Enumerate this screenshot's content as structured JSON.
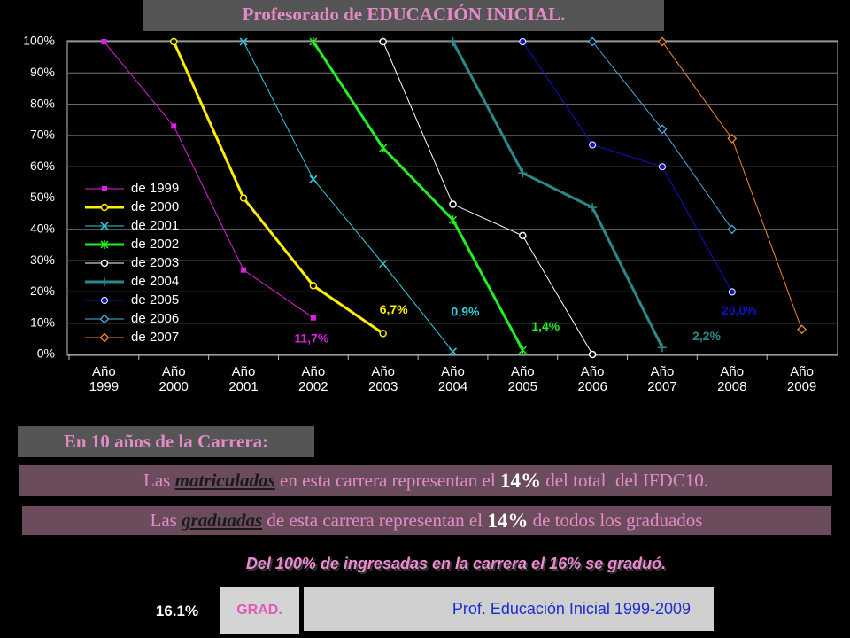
{
  "chart_data": {
    "type": "line",
    "title": "Profesorado de EDUCACIÓN INICIAL.",
    "categories": [
      "Año 1999",
      "Año 2000",
      "Año 2001",
      "Año 2002",
      "Año 2003",
      "Año 2004",
      "Año 2005",
      "Año 2006",
      "Año 2007",
      "Año 2008",
      "Año 2009"
    ],
    "ylim": [
      0,
      100
    ],
    "yticks": [
      {
        "value": 0,
        "label": "0%"
      },
      {
        "value": 10,
        "label": "10%"
      },
      {
        "value": 20,
        "label": "20%"
      },
      {
        "value": 30,
        "label": "30%"
      },
      {
        "value": 40,
        "label": "40%"
      },
      {
        "value": 50,
        "label": "50%"
      },
      {
        "value": 60,
        "label": "60%"
      },
      {
        "value": 70,
        "label": "70%"
      },
      {
        "value": 80,
        "label": "80%"
      },
      {
        "value": 90,
        "label": "90%"
      },
      {
        "value": 100,
        "label": "100%"
      }
    ],
    "grid": true,
    "legend": "left",
    "series": [
      {
        "name": "de 1999",
        "color": "#e020e0",
        "marker": "square",
        "line_width": 1,
        "values": [
          100,
          73,
          27,
          11.7,
          null,
          null,
          null,
          null,
          null,
          null,
          null
        ],
        "value_labels": [
          null,
          null,
          null,
          "11,7%",
          null,
          null,
          null,
          null,
          null,
          null,
          null
        ]
      },
      {
        "name": "de 2000",
        "color": "#ffee00",
        "marker": "circle",
        "line_width": 3,
        "values": [
          null,
          100,
          50,
          22,
          6.7,
          null,
          null,
          null,
          null,
          null,
          null
        ],
        "value_labels": [
          null,
          null,
          null,
          null,
          "6,7%",
          null,
          null,
          null,
          null,
          null,
          null
        ]
      },
      {
        "name": "de 2001",
        "color": "#33ccdd",
        "marker": "x",
        "line_width": 1,
        "values": [
          null,
          null,
          100,
          56,
          29,
          0.9,
          null,
          null,
          null,
          null,
          null
        ],
        "value_labels": [
          null,
          null,
          null,
          null,
          null,
          "0,9%",
          null,
          null,
          null,
          null,
          null
        ]
      },
      {
        "name": "de 2002",
        "color": "#22ee22",
        "marker": "star",
        "line_width": 3,
        "values": [
          null,
          null,
          null,
          100,
          66,
          43,
          1.4,
          null,
          null,
          null,
          null
        ],
        "value_labels": [
          null,
          null,
          null,
          null,
          null,
          null,
          "1,4%",
          null,
          null,
          null,
          null
        ]
      },
      {
        "name": "de 2003",
        "color": "#ffffff",
        "marker": "circle",
        "line_width": 1,
        "values": [
          null,
          null,
          null,
          null,
          100,
          48,
          38,
          0,
          null,
          null,
          null
        ]
      },
      {
        "name": "de 2004",
        "color": "#2a8a8a",
        "marker": "plus",
        "line_width": 3,
        "values": [
          null,
          null,
          null,
          null,
          null,
          100,
          58,
          47,
          2.2,
          null,
          null
        ],
        "value_labels": [
          null,
          null,
          null,
          null,
          null,
          null,
          null,
          null,
          "2,2%",
          null,
          null
        ]
      },
      {
        "name": "de 2005",
        "color": "#1010cc",
        "marker": "dot",
        "line_width": 1,
        "values": [
          null,
          null,
          null,
          null,
          null,
          null,
          100,
          67,
          60,
          20.0,
          null
        ],
        "value_labels": [
          null,
          null,
          null,
          null,
          null,
          null,
          null,
          null,
          null,
          "20,0%",
          null
        ]
      },
      {
        "name": "de 2006",
        "color": "#4aaee0",
        "marker": "diamond",
        "line_width": 1,
        "values": [
          null,
          null,
          null,
          null,
          null,
          null,
          null,
          100,
          72,
          40,
          null
        ]
      },
      {
        "name": "de 2007",
        "color": "#f08a30",
        "marker": "diamond",
        "line_width": 1,
        "values": [
          null,
          null,
          null,
          null,
          null,
          null,
          null,
          null,
          100,
          69,
          8
        ]
      }
    ]
  },
  "texts": {
    "heading": "En 10 años de la Carrera:",
    "line1": [
      "Las ",
      "matriculadas",
      " en esta carrera representan el ",
      "14%",
      " del total  del IFDC10."
    ],
    "line2": [
      "Las ",
      "graduadas",
      " de esta carrera representan el ",
      "14%",
      " de todos los graduados"
    ],
    "summary": "Del 100% de ingresadas en la carrera el 16% se graduó.",
    "percent": "16.1%",
    "grad": "GRAD.",
    "caption": "Prof. Educación Inicial 1999-2009"
  }
}
